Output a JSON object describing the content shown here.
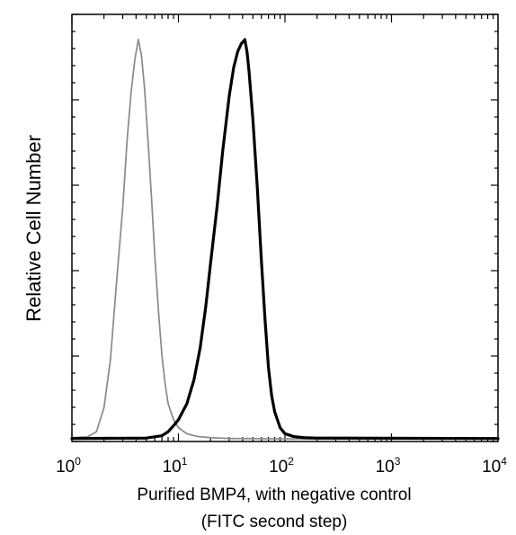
{
  "chart_data": {
    "type": "line",
    "title": "",
    "xlabel": "Purified BMP4, with negative control",
    "xlabel_line2": "(FITC second step)",
    "ylabel": "Relative Cell Number",
    "x_scale": "log",
    "xlim": [
      1,
      10000
    ],
    "ylim": [
      0,
      100
    ],
    "x_ticks": [
      {
        "base": "10",
        "exp": "0",
        "value": 1
      },
      {
        "base": "10",
        "exp": "1",
        "value": 10
      },
      {
        "base": "10",
        "exp": "2",
        "value": 100
      },
      {
        "base": "10",
        "exp": "3",
        "value": 1000
      },
      {
        "base": "10",
        "exp": "4",
        "value": 10000
      }
    ],
    "grid": false,
    "legend": "none",
    "series": [
      {
        "role": "negative-control",
        "color": "#8a8a8a",
        "style": "light-gray",
        "x": [
          1,
          1.4,
          1.7,
          2.0,
          2.3,
          2.6,
          3.0,
          3.3,
          3.6,
          3.9,
          4.2,
          4.5,
          4.8,
          5.2,
          5.6,
          6.0,
          6.5,
          7.0,
          7.5,
          8.0,
          9.0,
          10,
          12,
          15,
          20,
          30,
          100,
          10000
        ],
        "y": [
          0.5,
          0.7,
          2,
          8,
          20,
          38,
          58,
          75,
          87,
          95,
          100,
          96,
          88,
          74,
          60,
          46,
          32,
          21,
          14,
          9,
          5,
          3,
          1.5,
          0.8,
          0.5,
          0.3,
          0.2,
          0.2
        ]
      },
      {
        "role": "purified-bmp4",
        "color": "#000000",
        "style": "dark-black",
        "x": [
          1,
          5,
          7,
          8,
          9,
          10,
          12,
          14,
          16,
          18,
          20,
          23,
          26,
          30,
          33,
          36,
          39,
          42,
          44,
          46,
          50,
          55,
          60,
          65,
          70,
          75,
          80,
          90,
          100,
          120,
          150,
          200,
          10000
        ],
        "y": [
          0.3,
          0.4,
          1,
          2,
          3.5,
          5,
          9,
          15,
          23,
          33,
          44,
          58,
          72,
          86,
          93,
          97,
          99,
          100,
          97,
          92,
          80,
          63,
          45,
          30,
          18,
          11,
          7,
          3,
          1.5,
          0.8,
          0.5,
          0.4,
          0.3
        ]
      }
    ]
  }
}
